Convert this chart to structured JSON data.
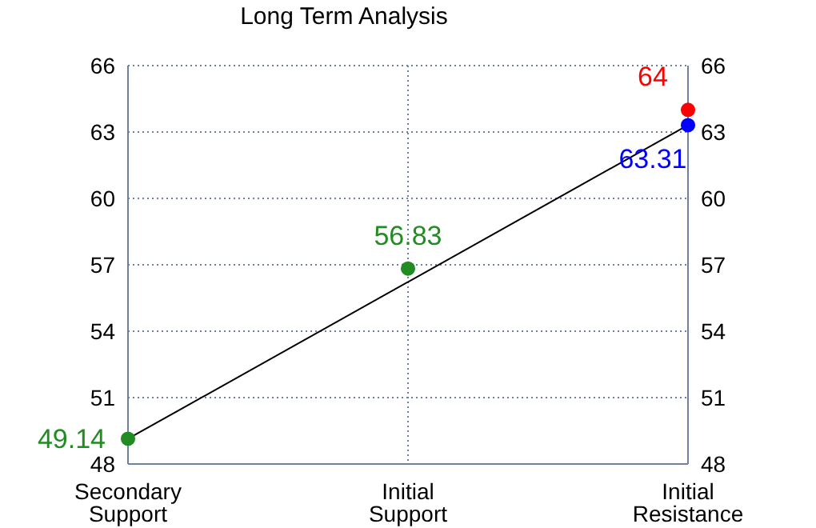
{
  "chart_data": {
    "type": "scatter",
    "title": "Long Term Analysis",
    "categories": [
      "Secondary Support",
      "Initial Support",
      "Initial Resistance"
    ],
    "ylim": [
      48,
      66
    ],
    "yticks": [
      48,
      51,
      54,
      57,
      60,
      63,
      66
    ],
    "y2lim": [
      48,
      66
    ],
    "y2ticks": [
      48,
      51,
      54,
      57,
      60,
      63,
      66
    ],
    "grid": true,
    "marker": "circle",
    "series": [
      {
        "type": "line",
        "color": "#000000",
        "x": [
          "Secondary Support",
          "Initial Resistance"
        ],
        "values": [
          49.14,
          63.31
        ],
        "marker": "none"
      },
      {
        "color": "#228b22",
        "x": [
          "Secondary Support",
          "Initial Support"
        ],
        "values": [
          49.14,
          56.83
        ],
        "value_labels": [
          "49.14",
          "56.83"
        ]
      },
      {
        "color": "#0000ff",
        "x": [
          "Initial Resistance"
        ],
        "values": [
          63.31
        ],
        "value_labels": [
          "63.31"
        ]
      },
      {
        "color": "#ff0000",
        "x": [
          "Initial Resistance"
        ],
        "values": [
          64
        ],
        "value_labels": [
          "64"
        ]
      }
    ]
  }
}
